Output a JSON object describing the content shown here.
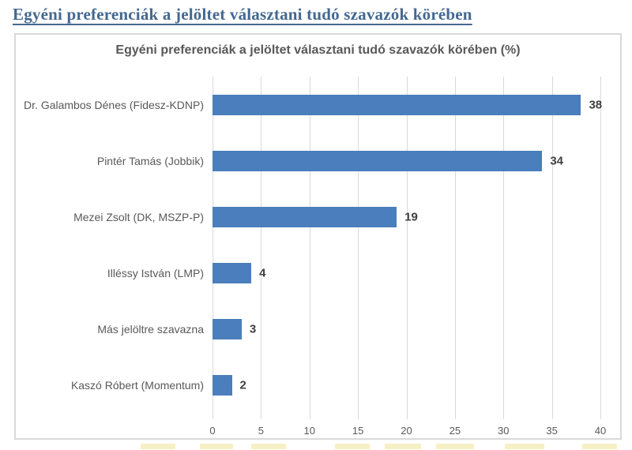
{
  "page": {
    "heading": "Egyéni preferenciák a jelöltet választani tudó szavazók körében"
  },
  "chart_data": {
    "type": "bar",
    "orientation": "horizontal",
    "title": "Egyéni preferenciák a jelöltet választani tudó szavazók körében (%)",
    "categories": [
      "Dr. Galambos Dénes (Fidesz-KDNP)",
      "Pintér Tamás (Jobbik)",
      "Mezei Zsolt (DK, MSZP-P)",
      "Illéssy István (LMP)",
      "Más jelöltre szavazna",
      "Kaszó Róbert (Momentum)"
    ],
    "values": [
      38,
      34,
      19,
      4,
      3,
      2
    ],
    "unit": "%",
    "xlim": [
      0,
      40
    ],
    "xticks": [
      0,
      5,
      10,
      15,
      20,
      25,
      30,
      35,
      40
    ],
    "grid": true,
    "legend": false,
    "data_labels": true
  },
  "colors": {
    "bar": "#4a7ebc",
    "grid": "#d9d9d9",
    "axis_text": "#595959",
    "category_text": "#595959",
    "value_text": "#3f3f3f",
    "chart_title_text": "#595959",
    "page_heading": "#44688f",
    "frame_border": "#d9d9d9",
    "highlight_artifact": "#f7f0c4"
  }
}
